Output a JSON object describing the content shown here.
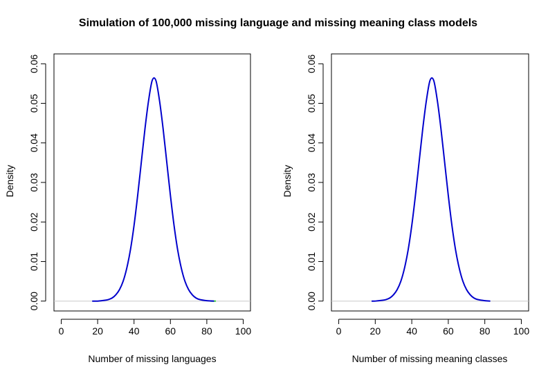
{
  "figure": {
    "title": "Simulation of 100,000 missing language and missing meaning class models"
  },
  "chart_data": [
    {
      "type": "line",
      "title": "",
      "xlabel": "Number of missing languages",
      "ylabel": "Density",
      "xlim": [
        -4,
        104
      ],
      "ylim": [
        -0.0025,
        0.0625
      ],
      "xticks": [
        0,
        20,
        40,
        60,
        80,
        100
      ],
      "yticks": [
        0.0,
        0.01,
        0.02,
        0.03,
        0.04,
        0.05,
        0.06
      ],
      "ytick_labels": [
        "0.00",
        "0.01",
        "0.02",
        "0.03",
        "0.04",
        "0.05",
        "0.06"
      ],
      "grid": false,
      "legend": "none",
      "baseline": 0,
      "series": [
        {
          "color": "#0000cc",
          "x": [
            17,
            20,
            24,
            26,
            28,
            30,
            32,
            34,
            36,
            38,
            40,
            42,
            44,
            46,
            48,
            50,
            52,
            54,
            56,
            58,
            60,
            62,
            64,
            66,
            68,
            70,
            72,
            74,
            76,
            80,
            84
          ],
          "y": [
            0.0,
            0.0,
            0.0002,
            0.0004,
            0.0008,
            0.0016,
            0.0029,
            0.005,
            0.0083,
            0.0129,
            0.0191,
            0.0267,
            0.0351,
            0.0435,
            0.0507,
            0.0558,
            0.0558,
            0.0507,
            0.0435,
            0.0351,
            0.0267,
            0.0191,
            0.0129,
            0.0083,
            0.005,
            0.0029,
            0.0016,
            0.0008,
            0.0004,
            0.0001,
            0.0
          ]
        }
      ],
      "tail_marker": {
        "color": "#33cc33",
        "x": [
          82,
          85
        ],
        "y": [
          0.0,
          0.0
        ]
      }
    },
    {
      "type": "line",
      "title": "",
      "xlabel": "Number of missing meaning classes",
      "ylabel": "Density",
      "xlim": [
        -4,
        104
      ],
      "ylim": [
        -0.0025,
        0.0625
      ],
      "xticks": [
        0,
        20,
        40,
        60,
        80,
        100
      ],
      "yticks": [
        0.0,
        0.01,
        0.02,
        0.03,
        0.04,
        0.05,
        0.06
      ],
      "ytick_labels": [
        "0.00",
        "0.01",
        "0.02",
        "0.03",
        "0.04",
        "0.05",
        "0.06"
      ],
      "grid": false,
      "legend": "none",
      "baseline": 0,
      "series": [
        {
          "color": "#0000cc",
          "x": [
            18,
            20,
            24,
            26,
            28,
            30,
            32,
            34,
            36,
            38,
            40,
            42,
            44,
            46,
            48,
            50,
            52,
            54,
            56,
            58,
            60,
            62,
            64,
            66,
            68,
            70,
            72,
            74,
            76,
            80,
            83
          ],
          "y": [
            0.0,
            0.0,
            0.0002,
            0.0004,
            0.0008,
            0.0016,
            0.0029,
            0.005,
            0.0083,
            0.0129,
            0.0191,
            0.0267,
            0.0351,
            0.0435,
            0.0507,
            0.0558,
            0.0558,
            0.0507,
            0.0435,
            0.0351,
            0.0267,
            0.0191,
            0.0129,
            0.0083,
            0.005,
            0.0029,
            0.0016,
            0.0008,
            0.0004,
            0.0001,
            0.0
          ]
        }
      ]
    }
  ]
}
